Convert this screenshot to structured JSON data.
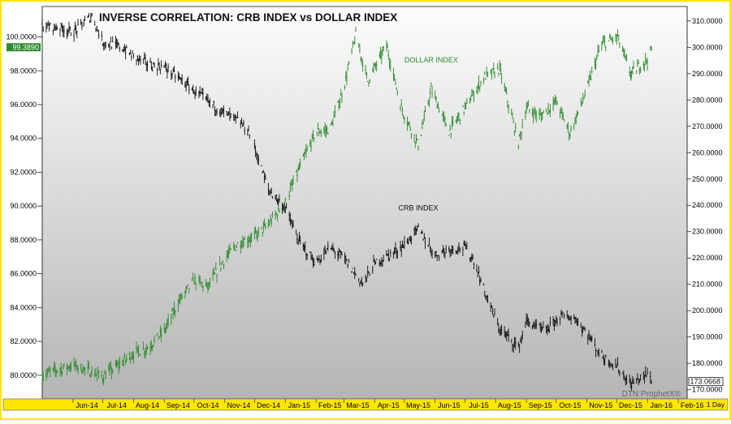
{
  "chart_data": {
    "type": "line",
    "title": "INVERSE CORRELATION:  CRB INDEX vs DOLLAR INDEX",
    "watermark": "DTN ProphetX®",
    "interval_label": "1 Day",
    "left_axis": {
      "series": "DOLLAR INDEX",
      "ylim": [
        78.6,
        101.8
      ],
      "ticks": [
        "100.0000",
        "98.0000",
        "96.0000",
        "94.0000",
        "92.0000",
        "90.0000",
        "88.0000",
        "86.0000",
        "84.0000",
        "82.0000",
        "80.0000"
      ],
      "tick_values": [
        100,
        98,
        96,
        94,
        92,
        90,
        88,
        86,
        84,
        82,
        80
      ],
      "last_value_label": "99.3890",
      "last_value": 99.389
    },
    "right_axis": {
      "series": "CRB INDEX",
      "ylim": [
        166.5,
        315.5
      ],
      "ticks": [
        "310.0000",
        "300.0000",
        "290.0000",
        "280.0000",
        "270.0000",
        "260.0000",
        "250.0000",
        "240.0000",
        "230.0000",
        "220.0000",
        "210.0000",
        "200.0000",
        "190.0000",
        "180.0000",
        "170.0000"
      ],
      "tick_values": [
        310,
        300,
        290,
        280,
        270,
        260,
        250,
        240,
        230,
        220,
        210,
        200,
        190,
        180,
        170
      ],
      "last_value_label": "173.0668",
      "last_value": 173.0668
    },
    "x_ticks": [
      "Jun-14",
      "Jul-14",
      "Aug-14",
      "Sep-14",
      "Oct-14",
      "Nov-14",
      "Dec-14",
      "Jan-15",
      "Feb-15",
      "Mar-15",
      "Apr-15",
      "May-15",
      "Jun-15",
      "Jul-15",
      "Aug-15",
      "Sep-15",
      "Oct-15",
      "Nov-15",
      "Dec-15",
      "Jan-16",
      "Feb-16"
    ],
    "x_range": [
      "2014-05-01",
      "2016-02-10"
    ],
    "series": [
      {
        "name": "DOLLAR INDEX",
        "axis": "left",
        "color": "#2e8b2e",
        "label_date": "2015-05-01",
        "label_value": 98.5,
        "points": [
          [
            "2014-05-01",
            80.0
          ],
          [
            "2014-05-15",
            80.3
          ],
          [
            "2014-06-01",
            80.6
          ],
          [
            "2014-06-15",
            80.3
          ],
          [
            "2014-07-01",
            79.9
          ],
          [
            "2014-07-15",
            80.5
          ],
          [
            "2014-08-01",
            81.3
          ],
          [
            "2014-08-15",
            81.6
          ],
          [
            "2014-09-01",
            82.6
          ],
          [
            "2014-09-15",
            84.3
          ],
          [
            "2014-10-01",
            85.6
          ],
          [
            "2014-10-15",
            85.2
          ],
          [
            "2014-11-01",
            86.9
          ],
          [
            "2014-11-15",
            87.8
          ],
          [
            "2014-12-01",
            88.2
          ],
          [
            "2014-12-15",
            88.9
          ],
          [
            "2015-01-01",
            90.2
          ],
          [
            "2015-01-15",
            92.2
          ],
          [
            "2015-02-01",
            94.4
          ],
          [
            "2015-02-15",
            94.5
          ],
          [
            "2015-03-01",
            97.0
          ],
          [
            "2015-03-13",
            100.1
          ],
          [
            "2015-03-25",
            97.4
          ],
          [
            "2015-04-13",
            99.5
          ],
          [
            "2015-04-28",
            95.8
          ],
          [
            "2015-05-15",
            93.6
          ],
          [
            "2015-05-28",
            96.9
          ],
          [
            "2015-06-15",
            94.4
          ],
          [
            "2015-07-01",
            95.8
          ],
          [
            "2015-07-20",
            97.6
          ],
          [
            "2015-08-05",
            98.1
          ],
          [
            "2015-08-24",
            93.7
          ],
          [
            "2015-09-01",
            95.8
          ],
          [
            "2015-09-15",
            95.3
          ],
          [
            "2015-10-01",
            96.2
          ],
          [
            "2015-10-15",
            94.3
          ],
          [
            "2015-11-01",
            96.9
          ],
          [
            "2015-11-15",
            99.5
          ],
          [
            "2015-12-02",
            100.0
          ],
          [
            "2015-12-15",
            97.8
          ],
          [
            "2016-01-01",
            98.7
          ],
          [
            "2016-01-06",
            99.389
          ]
        ]
      },
      {
        "name": "CRB INDEX",
        "axis": "right",
        "color": "#111111",
        "label_date": "2015-04-25",
        "label_value": 238,
        "points": [
          [
            "2014-05-01",
            308.0
          ],
          [
            "2014-05-20",
            307.5
          ],
          [
            "2014-06-01",
            305.5
          ],
          [
            "2014-06-20",
            312.0
          ],
          [
            "2014-07-01",
            302.0
          ],
          [
            "2014-07-20",
            300.0
          ],
          [
            "2014-08-01",
            296.5
          ],
          [
            "2014-08-20",
            293.0
          ],
          [
            "2014-09-01",
            292.5
          ],
          [
            "2014-09-20",
            287.0
          ],
          [
            "2014-10-01",
            283.5
          ],
          [
            "2014-10-20",
            278.0
          ],
          [
            "2014-11-01",
            275.0
          ],
          [
            "2014-11-15",
            272.0
          ],
          [
            "2014-11-25",
            268.0
          ],
          [
            "2014-12-01",
            262.0
          ],
          [
            "2014-12-15",
            246.0
          ],
          [
            "2015-01-01",
            239.0
          ],
          [
            "2015-01-15",
            226.0
          ],
          [
            "2015-02-01",
            218.0
          ],
          [
            "2015-02-15",
            224.0
          ],
          [
            "2015-03-01",
            220.0
          ],
          [
            "2015-03-20",
            210.0
          ],
          [
            "2015-04-01",
            218.0
          ],
          [
            "2015-04-20",
            222.0
          ],
          [
            "2015-05-01",
            225.0
          ],
          [
            "2015-05-15",
            231.0
          ],
          [
            "2015-06-01",
            221.0
          ],
          [
            "2015-06-15",
            223.5
          ],
          [
            "2015-07-01",
            224.0
          ],
          [
            "2015-07-10",
            219.0
          ],
          [
            "2015-07-25",
            203.0
          ],
          [
            "2015-08-05",
            193.0
          ],
          [
            "2015-08-24",
            186.0
          ],
          [
            "2015-09-01",
            196.0
          ],
          [
            "2015-09-20",
            192.0
          ],
          [
            "2015-10-05",
            198.0
          ],
          [
            "2015-10-20",
            197.0
          ],
          [
            "2015-11-01",
            191.5
          ],
          [
            "2015-11-15",
            183.0
          ],
          [
            "2015-12-01",
            179.0
          ],
          [
            "2015-12-15",
            172.0
          ],
          [
            "2016-01-01",
            176.0
          ],
          [
            "2016-01-06",
            173.0668
          ]
        ]
      }
    ]
  },
  "colors": {
    "frame": "#ffe600",
    "plot_top": "#fdfdfd",
    "plot_bottom": "#b9b9b9",
    "axis_bg": "#ffffff"
  }
}
